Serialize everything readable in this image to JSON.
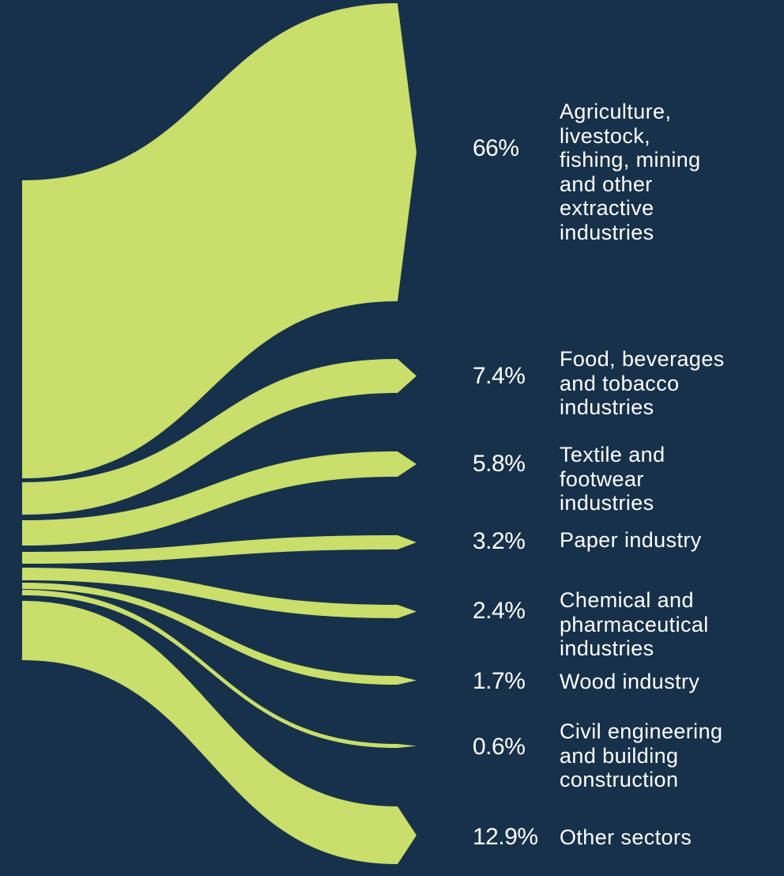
{
  "colors": {
    "background": "#17314a",
    "flow": "#c9de6b",
    "text": "#ffffff"
  },
  "chart_data": {
    "type": "sankey",
    "title": "",
    "series": [
      {
        "name": "Agriculture,\nlivestock,\nfishing, mining\nand other\nextractive\nindustries",
        "value": 66,
        "value_label": "66%"
      },
      {
        "name": "Food, beverages\nand tobacco\nindustries",
        "value": 7.4,
        "value_label": "7.4%"
      },
      {
        "name": "Textile and\nfootwear\nindustries",
        "value": 5.8,
        "value_label": "5.8%"
      },
      {
        "name": "Paper industry",
        "value": 3.2,
        "value_label": "3.2%"
      },
      {
        "name": "Chemical and\npharmaceutical\nindustries",
        "value": 2.4,
        "value_label": "2.4%"
      },
      {
        "name": "Wood industry",
        "value": 1.7,
        "value_label": "1.7%"
      },
      {
        "name": "Civil engineering\nand building\nconstruction",
        "value": 0.6,
        "value_label": "0.6%"
      },
      {
        "name": "Other sectors",
        "value": 12.9,
        "value_label": "12.9%"
      }
    ]
  }
}
